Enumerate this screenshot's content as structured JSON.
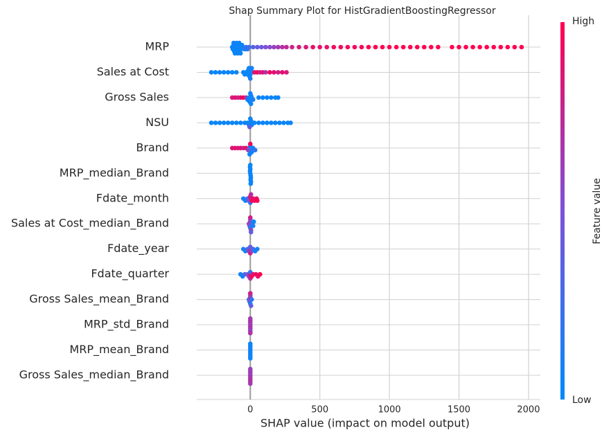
{
  "chart_data": {
    "type": "beeswarm",
    "title": "Shap Summary Plot for HistGradientBoostingRegressor",
    "xlabel": "SHAP value (impact on model output)",
    "xlim": [
      -385,
      2085
    ],
    "xticks": [
      0,
      500,
      1000,
      1500,
      2000
    ],
    "grid": true,
    "colors": [
      "#008bfb",
      "#7c52d9",
      "#ff0051"
    ],
    "colorbar": {
      "label": "Feature value",
      "high_label": "High",
      "low_label": "Low"
    },
    "series": [
      {
        "name": "MRP",
        "values": [
          -130,
          -125,
          -120,
          -115,
          -110,
          -105,
          -100,
          -95,
          -90,
          -85,
          -80,
          -75,
          -70,
          -65,
          -60,
          -50,
          -40,
          -30,
          -20,
          -10,
          -120,
          -110,
          -100,
          -90,
          -80,
          -70,
          20,
          50,
          80,
          110,
          140,
          170,
          200,
          230,
          260,
          300,
          350,
          400,
          450,
          500,
          550,
          600,
          650,
          700,
          750,
          800,
          850,
          900,
          950,
          1000,
          1050,
          1100,
          1150,
          1200,
          1250,
          1300,
          1350,
          1450,
          1500,
          1550,
          1600,
          1650,
          1700,
          1750,
          1800,
          1850,
          1900,
          1950
        ],
        "feature_values": [
          0.05,
          0.05,
          0.05,
          0.05,
          0.05,
          0.05,
          0.05,
          0.05,
          0.05,
          0.05,
          0.05,
          0.05,
          0.05,
          0.05,
          0.05,
          0.1,
          0.1,
          0.15,
          0.2,
          0.25,
          0.05,
          0.05,
          0.05,
          0.05,
          0.05,
          0.05,
          0.35,
          0.4,
          0.45,
          0.5,
          0.55,
          0.6,
          0.65,
          0.7,
          0.75,
          0.8,
          0.85,
          0.85,
          0.9,
          0.9,
          0.9,
          0.95,
          0.95,
          0.95,
          0.95,
          0.95,
          1,
          1,
          1,
          1,
          1,
          1,
          1,
          1,
          1,
          1,
          1,
          1,
          1,
          1,
          1,
          1,
          1,
          1,
          1,
          1,
          1,
          1
        ]
      },
      {
        "name": "Sales at Cost",
        "values": [
          -280,
          -250,
          -220,
          -190,
          -160,
          -130,
          -100,
          -50,
          -40,
          -30,
          -20,
          -15,
          -10,
          -5,
          0,
          5,
          10,
          -10,
          0,
          10,
          30,
          50,
          70,
          90,
          110,
          140,
          170,
          200,
          230,
          260
        ],
        "feature_values": [
          0.05,
          0.05,
          0.05,
          0.05,
          0.05,
          0.05,
          0.05,
          0.05,
          0.05,
          0.05,
          0.05,
          0.05,
          0.05,
          0.05,
          0.05,
          0.05,
          0.05,
          0.05,
          0.1,
          0.1,
          0.9,
          0.95,
          0.8,
          0.9,
          0.7,
          0.95,
          0.9,
          0.8,
          0.9,
          0.85
        ]
      },
      {
        "name": "Gross Sales",
        "values": [
          -130,
          -110,
          -90,
          -70,
          -50,
          -30,
          -20,
          -10,
          0,
          5,
          10,
          20,
          -5,
          0,
          5,
          60,
          90,
          120,
          150,
          180,
          200
        ],
        "feature_values": [
          0.85,
          0.9,
          0.8,
          0.9,
          0.95,
          0.7,
          0.1,
          0.05,
          0.05,
          0.05,
          0.05,
          0.1,
          0.05,
          0.05,
          0.05,
          0.05,
          0.05,
          0.05,
          0.05,
          0.05,
          0.05
        ]
      },
      {
        "name": "NSU",
        "values": [
          -280,
          -250,
          -220,
          -190,
          -160,
          -130,
          -100,
          -70,
          -40,
          -20,
          -10,
          0,
          5,
          10,
          -5,
          0,
          30,
          60,
          90,
          120,
          150,
          180,
          210,
          240,
          270,
          290
        ],
        "feature_values": [
          0.05,
          0.05,
          0.05,
          0.05,
          0.05,
          0.05,
          0.05,
          0.05,
          0.05,
          0.05,
          0.1,
          0.05,
          0.05,
          0.05,
          0.4,
          0.05,
          0.05,
          0.05,
          0.05,
          0.05,
          0.05,
          0.05,
          0.05,
          0.05,
          0.05,
          0.05
        ]
      },
      {
        "name": "Brand",
        "values": [
          -130,
          -110,
          -90,
          -70,
          -50,
          -30,
          -15,
          -5,
          0,
          5,
          10,
          0,
          -5,
          20,
          35
        ],
        "feature_values": [
          0.85,
          0.9,
          0.85,
          0.9,
          0.8,
          0.9,
          0.6,
          0.5,
          0.05,
          0.3,
          0.05,
          0.95,
          0.05,
          0.1,
          0.2
        ]
      },
      {
        "name": "MRP_median_Brand",
        "values": [
          0,
          2,
          -2,
          4,
          0,
          2,
          -2,
          5,
          0,
          3
        ],
        "feature_values": [
          0.05,
          0.05,
          0.05,
          0.05,
          0.05,
          0.05,
          0.05,
          0.05,
          0.05,
          0.05
        ]
      },
      {
        "name": "Fdate_month",
        "values": [
          -50,
          -35,
          -20,
          -10,
          0,
          0,
          0,
          5,
          10,
          20,
          30,
          45,
          50
        ],
        "feature_values": [
          0.1,
          0.05,
          0.3,
          0.5,
          0.6,
          0.9,
          0.2,
          0.7,
          0.95,
          0.9,
          0.95,
          0.9,
          1
        ]
      },
      {
        "name": "Sales at Cost_median_Brand",
        "values": [
          -10,
          -5,
          0,
          0,
          0,
          5,
          10,
          20,
          25,
          0,
          5
        ],
        "feature_values": [
          0.6,
          0.5,
          0.7,
          0.1,
          0.5,
          0.6,
          0.3,
          0.1,
          0.05,
          0.8,
          0.4
        ]
      },
      {
        "name": "Fdate_year",
        "values": [
          -50,
          -35,
          -20,
          -10,
          0,
          0,
          0,
          10,
          20,
          35,
          50
        ],
        "feature_values": [
          0.1,
          0.05,
          0.3,
          0.6,
          0.7,
          0.4,
          0.8,
          0.6,
          0.3,
          0.05,
          0.1
        ]
      },
      {
        "name": "Fdate_quarter",
        "values": [
          -70,
          -55,
          -40,
          -20,
          -10,
          0,
          0,
          0,
          10,
          20,
          40,
          55,
          70
        ],
        "feature_values": [
          0.1,
          0.05,
          0.3,
          0.5,
          0.6,
          0.9,
          0.2,
          0.7,
          0.95,
          0.9,
          0.95,
          0.9,
          1
        ]
      },
      {
        "name": "Gross Sales_mean_Brand",
        "values": [
          -10,
          -5,
          0,
          0,
          0,
          5,
          10,
          0
        ],
        "feature_values": [
          0.3,
          0.5,
          0.7,
          0.1,
          0.6,
          0.4,
          0.2,
          0.8
        ]
      },
      {
        "name": "MRP_std_Brand",
        "values": [
          0,
          0,
          0,
          0,
          0,
          0,
          0,
          0
        ],
        "feature_values": [
          0.6,
          0.7,
          0.6,
          0.65,
          0.7,
          0.6,
          0.65,
          0.7
        ]
      },
      {
        "name": "MRP_mean_Brand",
        "values": [
          0,
          0,
          0,
          0,
          0,
          0,
          0,
          0
        ],
        "feature_values": [
          0.05,
          0.05,
          0.1,
          0.05,
          0.05,
          0.1,
          0.05,
          0.05
        ]
      },
      {
        "name": "Gross Sales_median_Brand",
        "values": [
          0,
          0,
          0,
          0,
          0,
          0,
          0,
          0
        ],
        "feature_values": [
          0.7,
          0.65,
          0.6,
          0.7,
          0.65,
          0.7,
          0.6,
          0.65
        ]
      }
    ]
  }
}
